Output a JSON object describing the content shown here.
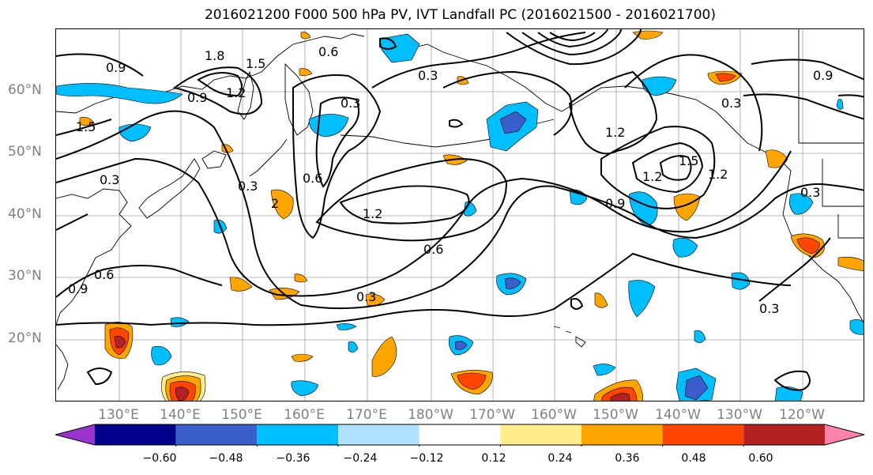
{
  "title": "2016021200 F000 500 hPa PV, IVT Landfall PC (2016021500 - 2016021700)",
  "latitude_labels": [
    "60°N",
    "50°N",
    "40°N",
    "30°N",
    "20°N"
  ],
  "longitude_labels": [
    "130°E",
    "140°E",
    "150°E",
    "160°E",
    "170°E",
    "180°W",
    "170°W",
    "160°W",
    "150°W",
    "140°W",
    "130°W",
    "120°W"
  ],
  "contour_labels": [
    "1.8",
    "1.5",
    "0.9",
    "0.6",
    "0.3",
    "0.9",
    "1.5",
    "1.2",
    "0.3",
    "0.9",
    "0.3",
    "1.2",
    "1.2",
    "2",
    "0.6",
    "0.3",
    "0.6",
    "0.9",
    "0.3",
    "0.6",
    "1.5",
    "1.2",
    "0.3",
    "1.2",
    "0.3",
    "0.9",
    "0.3"
  ],
  "colorbar": {
    "ticks": [
      "−0.60",
      "−0.48",
      "−0.36",
      "−0.24",
      "−0.12",
      "0.12",
      "0.24",
      "0.36",
      "0.48",
      "0.60"
    ],
    "colors": [
      "#9a32cd",
      "#00008b",
      "#3a5fcd",
      "#00bfff",
      "#b0e2ff",
      "#ffffff",
      "#ffec8b",
      "#ffa500",
      "#ff4500",
      "#b22222",
      "#ff82ab"
    ]
  }
}
